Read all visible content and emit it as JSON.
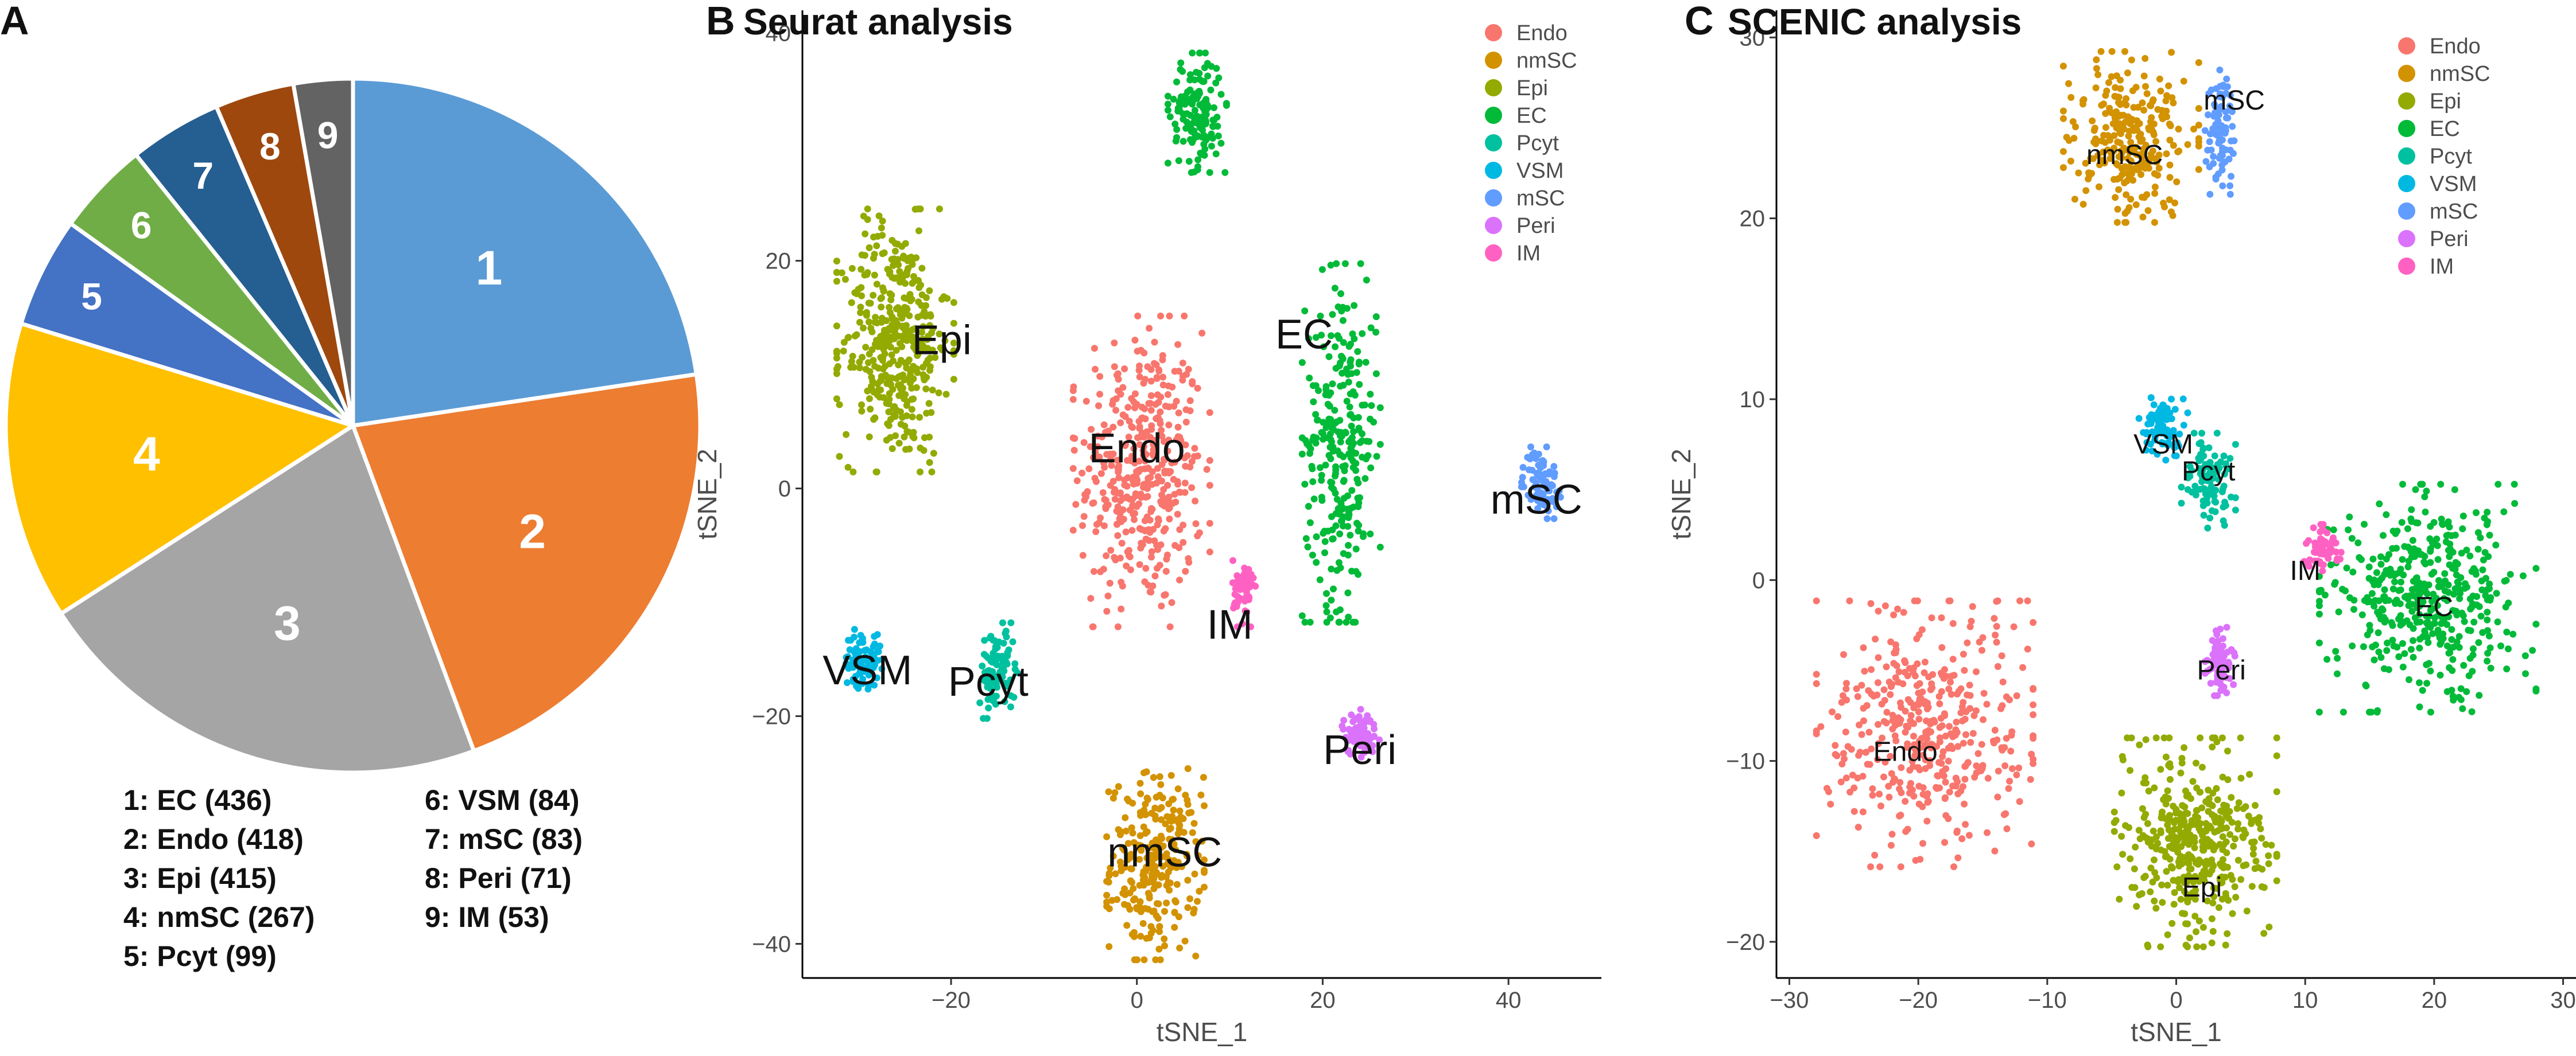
{
  "chart_data": [
    {
      "type": "pie",
      "panel": "A",
      "slices": [
        {
          "id": "1",
          "label": "EC",
          "value": 436,
          "color": "#5B9BD5",
          "legend": "1: EC   (436)"
        },
        {
          "id": "2",
          "label": "Endo",
          "value": 418,
          "color": "#ED7D31",
          "legend": "2: Endo (418)"
        },
        {
          "id": "3",
          "label": "Epi",
          "value": 415,
          "color": "#A5A5A5",
          "legend": "3: Epi (415)"
        },
        {
          "id": "4",
          "label": "nmSC",
          "value": 267,
          "color": "#FFC000",
          "legend": "4: nmSC (267)"
        },
        {
          "id": "5",
          "label": "Pcyt",
          "value": 99,
          "color": "#4472C4",
          "legend": "5: Pcyt (99)"
        },
        {
          "id": "6",
          "label": "VSM",
          "value": 84,
          "color": "#70AD47",
          "legend": "6: VSM (84)"
        },
        {
          "id": "7",
          "label": "mSC",
          "value": 83,
          "color": "#255E91",
          "legend": "7: mSC (83)"
        },
        {
          "id": "8",
          "label": "Peri",
          "value": 71,
          "color": "#9E480E",
          "legend": "8: Peri (71)"
        },
        {
          "id": "9",
          "label": "IM",
          "value": 53,
          "color": "#636363",
          "legend": "9: IM (53)"
        }
      ]
    },
    {
      "type": "scatter",
      "panel": "B",
      "title": "Seurat  analysis",
      "xlabel": "tSNE_1",
      "ylabel": "tSNE_2",
      "xlim": [
        -36,
        50
      ],
      "ylim": [
        -43,
        42
      ],
      "xticks": [
        -20,
        0,
        20,
        40
      ],
      "yticks": [
        -40,
        -20,
        0,
        20,
        40
      ],
      "legend": [
        "Endo",
        "nmSC",
        "Epi",
        "EC",
        "Pcyt",
        "VSM",
        "mSC",
        "Peri",
        "IM"
      ],
      "clusters": [
        {
          "name": "Endo",
          "label": "Endo",
          "label_x": 0,
          "label_y": 3.5,
          "label_size": 72,
          "color": "#F8766D",
          "cx": 0.5,
          "cy": 1.5,
          "rx": 7,
          "ry": 13,
          "n": 420
        },
        {
          "name": "nmSC",
          "label": "nmSC",
          "label_x": 3,
          "label_y": -32,
          "label_size": 72,
          "color": "#D39200",
          "cx": 2,
          "cy": -33,
          "rx": 5,
          "ry": 8,
          "n": 260
        },
        {
          "name": "Epi",
          "label": "Epi",
          "label_x": -21,
          "label_y": 13,
          "label_size": 72,
          "color": "#93AA00",
          "cx": -26,
          "cy": 13,
          "rx": 6,
          "ry": 11,
          "n": 410
        },
        {
          "name": "EC",
          "label": "EC",
          "label_x": 18,
          "label_y": 13.5,
          "label_size": 72,
          "color": "#00BA38",
          "cx": 22,
          "cy": 4,
          "rx": 4,
          "ry": 15,
          "n": 280
        },
        {
          "name": "EC_top",
          "label": "",
          "color": "#00BA38",
          "cx": 6.5,
          "cy": 33,
          "rx": 3,
          "ry": 5,
          "n": 150
        },
        {
          "name": "Pcyt",
          "label": "Pcyt",
          "label_x": -16,
          "label_y": -17,
          "label_size": 72,
          "color": "#00C19F",
          "cx": -15,
          "cy": -16,
          "rx": 2,
          "ry": 4,
          "n": 99
        },
        {
          "name": "VSM",
          "label": "VSM",
          "label_x": -29,
          "label_y": -16,
          "label_size": 72,
          "color": "#00B9E3",
          "cx": -29.5,
          "cy": -15,
          "rx": 2,
          "ry": 2.5,
          "n": 84
        },
        {
          "name": "mSC",
          "label": "mSC",
          "label_x": 43,
          "label_y": -1,
          "label_size": 72,
          "color": "#619CFF",
          "cx": 43.5,
          "cy": 0.5,
          "rx": 2,
          "ry": 3,
          "n": 83
        },
        {
          "name": "Peri",
          "label": "Peri",
          "label_x": 24,
          "label_y": -23,
          "label_size": 72,
          "color": "#DB72FB",
          "cx": 24,
          "cy": -21.5,
          "rx": 2,
          "ry": 2,
          "n": 71
        },
        {
          "name": "IM",
          "label": "IM",
          "label_x": 10,
          "label_y": -12,
          "label_size": 72,
          "color": "#FF61C3",
          "cx": 11.5,
          "cy": -9,
          "rx": 1.2,
          "ry": 3,
          "n": 53
        }
      ]
    },
    {
      "type": "scatter",
      "panel": "C",
      "title": "SCENIC analysis",
      "xlabel": "tSNE_1",
      "ylabel": "tSNE_2",
      "xlim": [
        -31,
        31
      ],
      "ylim": [
        -22,
        31.5
      ],
      "xticks": [
        -30,
        -20,
        -10,
        0,
        10,
        20,
        30
      ],
      "yticks": [
        -20,
        -10,
        0,
        10,
        20,
        30
      ],
      "legend": [
        "Endo",
        "nmSC",
        "Epi",
        "EC",
        "Pcyt",
        "VSM",
        "mSC",
        "Peri",
        "IM"
      ],
      "clusters": [
        {
          "name": "Endo",
          "label": "Endo",
          "label_x": -21,
          "label_y": -9.5,
          "label_size": 48,
          "color": "#F8766D",
          "cx": -19.5,
          "cy": -8.5,
          "rx": 8,
          "ry": 7,
          "n": 420
        },
        {
          "name": "nmSC",
          "label": "nmSC",
          "label_x": -4,
          "label_y": 23.5,
          "label_size": 48,
          "color": "#D39200",
          "cx": -3.5,
          "cy": 24.5,
          "rx": 5,
          "ry": 4.5,
          "n": 260
        },
        {
          "name": "Epi",
          "label": "Epi",
          "label_x": 2,
          "label_y": -17,
          "label_size": 48,
          "color": "#93AA00",
          "cx": 1.5,
          "cy": -14.5,
          "rx": 6,
          "ry": 5.5,
          "n": 410
        },
        {
          "name": "EC",
          "label": "EC",
          "label_x": 20,
          "label_y": -1.5,
          "label_size": 48,
          "color": "#00BA38",
          "cx": 19.5,
          "cy": -1,
          "rx": 8,
          "ry": 6,
          "n": 436
        },
        {
          "name": "Pcyt",
          "label": "Pcyt",
          "label_x": 2.5,
          "label_y": 6,
          "label_size": 48,
          "color": "#00C19F",
          "cx": 2.5,
          "cy": 5.5,
          "rx": 2,
          "ry": 2.5,
          "n": 99
        },
        {
          "name": "VSM",
          "label": "VSM",
          "label_x": -1,
          "label_y": 7.5,
          "label_size": 48,
          "color": "#00B9E3",
          "cx": -1,
          "cy": 8.5,
          "rx": 1.8,
          "ry": 2,
          "n": 84
        },
        {
          "name": "mSC",
          "label": "mSC",
          "label_x": 4.5,
          "label_y": 26.5,
          "label_size": 48,
          "color": "#619CFF",
          "cx": 3.5,
          "cy": 25,
          "rx": 1.2,
          "ry": 3.5,
          "n": 83
        },
        {
          "name": "Peri",
          "label": "Peri",
          "label_x": 3.5,
          "label_y": -5,
          "label_size": 48,
          "color": "#DB72FB",
          "cx": 3.5,
          "cy": -4.5,
          "rx": 1.2,
          "ry": 1.8,
          "n": 71
        },
        {
          "name": "IM",
          "label": "IM",
          "label_x": 10,
          "label_y": 0.5,
          "label_size": 48,
          "color": "#FF61C3",
          "cx": 11.5,
          "cy": 1.5,
          "rx": 1.5,
          "ry": 1.5,
          "n": 53
        }
      ]
    }
  ],
  "pie_legend_left": [
    "1: EC   (436)",
    "2: Endo (418)",
    "3: Epi (415)",
    "4: nmSC (267)",
    "5: Pcyt (99)"
  ],
  "pie_legend_right": [
    "6: VSM (84)",
    "7: mSC (83)",
    "8: Peri (71)",
    "9: IM (53)"
  ],
  "panel_letters": {
    "a": "A",
    "b": "B",
    "c": "C"
  },
  "legend_colors": {
    "Endo": "#F8766D",
    "nmSC": "#D39200",
    "Epi": "#93AA00",
    "EC": "#00BA38",
    "Pcyt": "#00C19F",
    "VSM": "#00B9E3",
    "mSC": "#619CFF",
    "Peri": "#DB72FB",
    "IM": "#FF61C3"
  }
}
